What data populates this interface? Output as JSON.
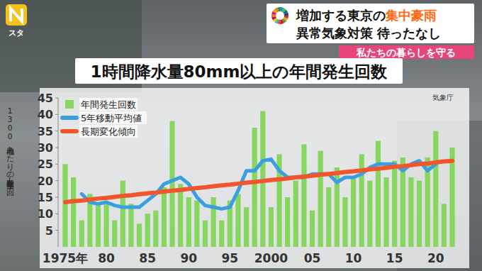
{
  "chart_data": {
    "type": "bar",
    "title": "1時間降水量80mm以上の年間発生回数",
    "y_label": "1300地点あたりの発生回数(回)",
    "annotations": [
      "増加する東京の",
      "集中豪雨",
      "異常気象対策 待ったなし",
      "私たちの暮らしを守る",
      "気象庁",
      "スタ"
    ],
    "categories": [
      "1975年",
      null,
      null,
      null,
      null,
      "80",
      null,
      null,
      null,
      null,
      "85",
      null,
      null,
      null,
      null,
      "90",
      null,
      null,
      null,
      null,
      "95",
      null,
      null,
      null,
      null,
      "2000",
      null,
      null,
      null,
      null,
      "05",
      null,
      null,
      null,
      null,
      "10",
      null,
      null,
      null,
      null,
      "15",
      null,
      null,
      null,
      null,
      "20",
      null,
      null
    ],
    "series": [
      {
        "name": "年間発生回数",
        "type": "bar",
        "color": "#86d65f",
        "values": [
          25,
          21,
          8,
          16,
          13,
          13,
          8,
          20,
          13,
          7,
          10,
          11,
          18,
          38,
          19,
          15,
          14,
          8,
          15,
          8,
          14,
          16,
          12,
          36,
          41,
          12,
          28,
          15,
          20,
          31,
          11,
          29,
          18,
          24,
          15,
          21,
          28,
          20,
          32,
          21,
          26,
          27,
          21,
          20,
          27,
          35,
          13,
          30
        ]
      },
      {
        "name": "5年移動平均値",
        "type": "line",
        "color": "#3a9fe0",
        "values": [
          null,
          null,
          16,
          13.5,
          13,
          13.5,
          12.5,
          12,
          12,
          12,
          14,
          16,
          19,
          20,
          21,
          19,
          15,
          12.5,
          12,
          11.5,
          12,
          17,
          23,
          23,
          26,
          26.5,
          23,
          21,
          21,
          21,
          22,
          22,
          22,
          19.5,
          21,
          21,
          22,
          24,
          25,
          25,
          25,
          23,
          25,
          26,
          23,
          25,
          null,
          null
        ]
      },
      {
        "name": "長期変化傾向",
        "type": "line",
        "color": "#f2552c",
        "values": [
          13.5,
          13.8,
          14.0,
          14.3,
          14.6,
          14.8,
          15.1,
          15.4,
          15.6,
          15.9,
          16.2,
          16.4,
          16.7,
          17.0,
          17.2,
          17.5,
          17.8,
          18.0,
          18.3,
          18.6,
          18.8,
          19.1,
          19.4,
          19.6,
          19.9,
          20.2,
          20.4,
          20.7,
          21.0,
          21.2,
          21.5,
          21.8,
          22.0,
          22.3,
          22.6,
          22.8,
          23.1,
          23.4,
          23.6,
          23.9,
          24.2,
          24.4,
          24.7,
          25.0,
          25.2,
          25.5,
          25.8,
          26.0
        ]
      }
    ],
    "ylim": [
      0,
      45
    ],
    "yticks": [
      5,
      10,
      15,
      20,
      25,
      30,
      35,
      40,
      45
    ],
    "grid": false,
    "legend": "top-left"
  }
}
